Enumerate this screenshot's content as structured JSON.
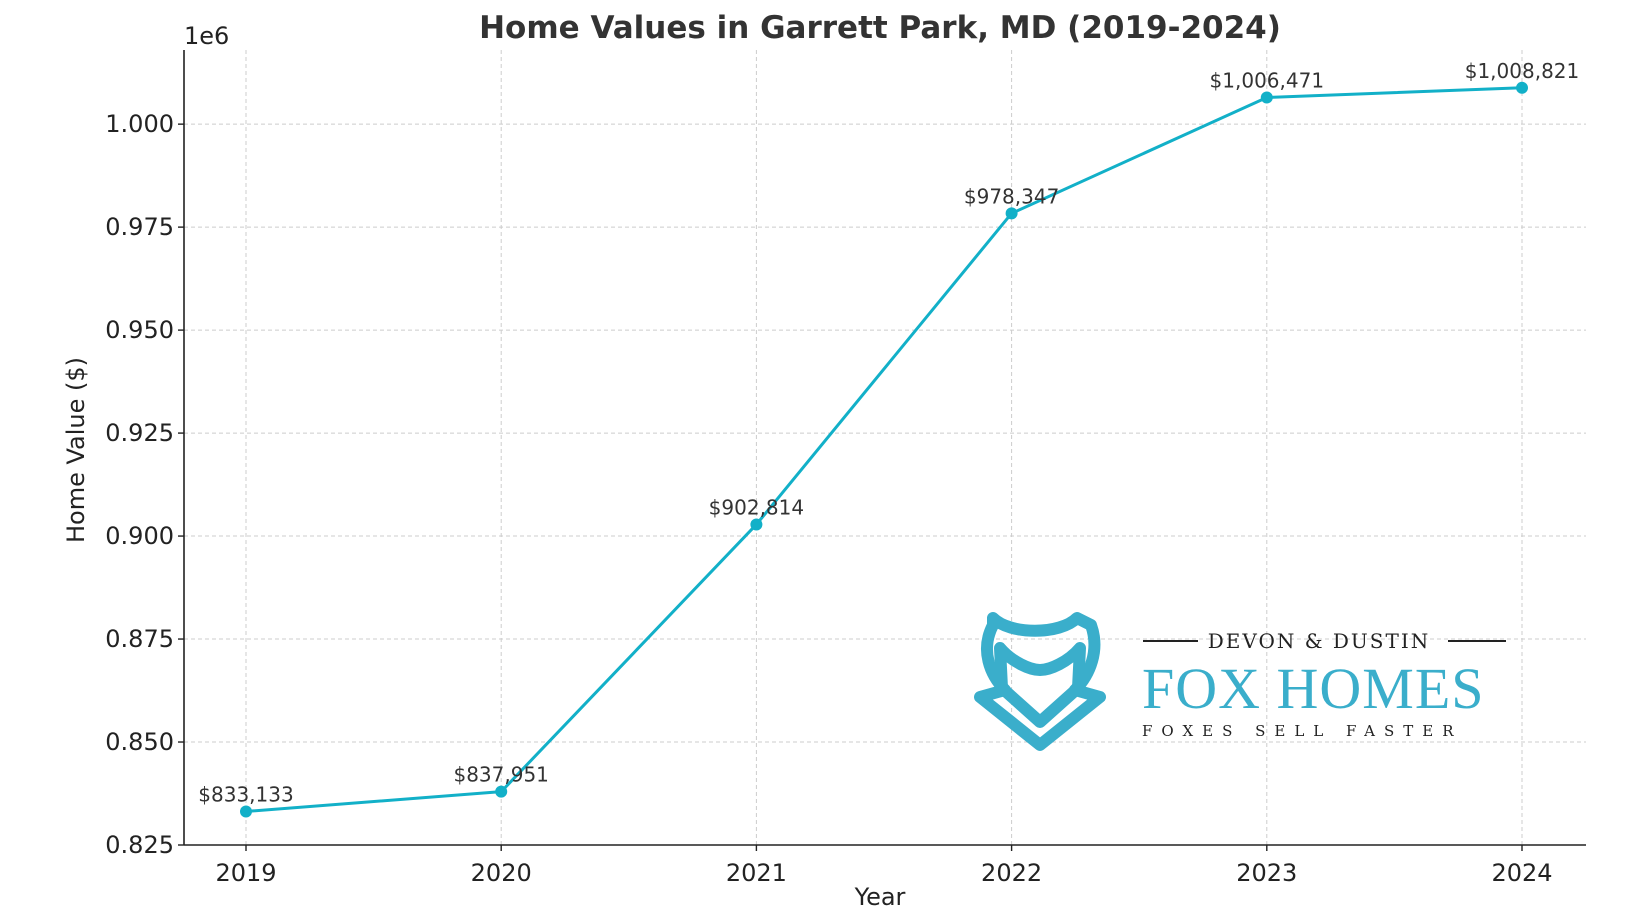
{
  "chart_data": {
    "type": "line",
    "title": "Home Values in Garrett Park, MD (2019-2024)",
    "xlabel": "Year",
    "ylabel": "Home Value ($)",
    "offset_text": "1e6",
    "categories": [
      "2019",
      "2020",
      "2021",
      "2022",
      "2023",
      "2024"
    ],
    "values": [
      833133,
      837951,
      902814,
      978347,
      1006471,
      1008821
    ],
    "data_labels": [
      "$833,133",
      "$837,951",
      "$902,814",
      "$978,347",
      "$1,006,471",
      "$1,008,821"
    ],
    "ylim": [
      825000,
      1018000
    ],
    "yticks": [
      825000,
      850000,
      875000,
      900000,
      925000,
      950000,
      975000,
      1000000
    ],
    "ytick_labels": [
      "0.825",
      "0.850",
      "0.875",
      "0.900",
      "0.925",
      "0.950",
      "0.975",
      "1.000"
    ],
    "grid": true,
    "color": "#12b0c8"
  },
  "logo": {
    "top_text": "DEVON & DUSTIN",
    "main_text": "FOX HOMES",
    "tagline": "FOXES SELL FASTER",
    "color": "#3aaecb",
    "icon": "fox-head-icon"
  }
}
